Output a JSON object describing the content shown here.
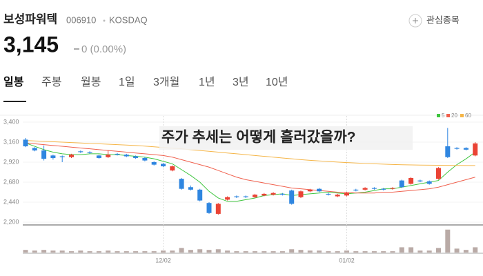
{
  "header": {
    "name": "보성파워텍",
    "code": "006910",
    "market": "KOSDAQ",
    "watch_button": "관심종목",
    "price": "3,145",
    "change": "0 (0.00%)"
  },
  "tabs": [
    "일봉",
    "주봉",
    "월봉",
    "1일",
    "3개월",
    "1년",
    "3년",
    "10년"
  ],
  "overlay": "주가 추세는 어떻게 흘러갔을까?",
  "chart_data": {
    "type": "candlestick",
    "categories": [
      null,
      null,
      null,
      null,
      null,
      null,
      null,
      null,
      null,
      null,
      null,
      null,
      null,
      null,
      null,
      "12/02",
      null,
      null,
      null,
      null,
      null,
      null,
      null,
      null,
      null,
      null,
      null,
      null,
      null,
      null,
      null,
      null,
      null,
      null,
      null,
      "01/02",
      null,
      null,
      null,
      null,
      null,
      null,
      null,
      null,
      null,
      null,
      null,
      null,
      null,
      null
    ],
    "open": [
      3190,
      3090,
      3060,
      3000,
      2990,
      2980,
      3050,
      3040,
      3000,
      2980,
      3020,
      3010,
      2990,
      2970,
      2920,
      2900,
      2820,
      2720,
      2620,
      2590,
      2430,
      2300,
      2470,
      2510,
      2510,
      2500,
      2520,
      2530,
      2540,
      2580,
      2500,
      2570,
      2600,
      2540,
      2510,
      2520,
      2590,
      2590,
      2610,
      2600,
      2600,
      2700,
      2660,
      2700,
      2690,
      2720,
      3110,
      3090,
      3090,
      3000
    ],
    "high": [
      3210,
      3100,
      3120,
      3010,
      3000,
      3020,
      3060,
      3050,
      3010,
      3060,
      3030,
      3020,
      3000,
      2980,
      2930,
      2910,
      2880,
      2730,
      2640,
      2600,
      2440,
      2430,
      2510,
      2520,
      2520,
      2540,
      2550,
      2560,
      2550,
      2590,
      2580,
      2600,
      2610,
      2550,
      2540,
      2560,
      2600,
      2620,
      2620,
      2610,
      2620,
      2710,
      2740,
      2710,
      2700,
      2860,
      3330,
      3100,
      3100,
      3160
    ],
    "low": [
      3100,
      3050,
      2940,
      2950,
      2920,
      2970,
      3030,
      3020,
      2960,
      2970,
      3000,
      2980,
      2960,
      2930,
      2880,
      2860,
      2810,
      2590,
      2580,
      2450,
      2300,
      2290,
      2460,
      2490,
      2490,
      2490,
      2510,
      2520,
      2520,
      2410,
      2490,
      2560,
      2560,
      2520,
      2500,
      2510,
      2570,
      2580,
      2590,
      2580,
      2590,
      2610,
      2650,
      2680,
      2650,
      2710,
      2970,
      3070,
      3060,
      2990
    ],
    "close": [
      3110,
      3060,
      2960,
      2970,
      2980,
      3010,
      3040,
      3030,
      2970,
      3010,
      3010,
      2990,
      2970,
      2940,
      2890,
      2870,
      2870,
      2600,
      2590,
      2460,
      2310,
      2420,
      2500,
      2500,
      2500,
      2530,
      2540,
      2550,
      2530,
      2420,
      2570,
      2590,
      2570,
      2530,
      2530,
      2550,
      2580,
      2610,
      2600,
      2590,
      2610,
      2620,
      2730,
      2690,
      2660,
      2850,
      2980,
      3080,
      3070,
      3145
    ],
    "volume": [
      4,
      3,
      4,
      3,
      3,
      2,
      3,
      2,
      2,
      3,
      2,
      2,
      2,
      2,
      2,
      3,
      3,
      7,
      4,
      5,
      4,
      5,
      3,
      2,
      2,
      2,
      2,
      2,
      2,
      5,
      4,
      3,
      3,
      2,
      2,
      3,
      2,
      2,
      2,
      2,
      2,
      8,
      8,
      3,
      3,
      7,
      35,
      6,
      4,
      8
    ],
    "volume_ylim": [
      0,
      40
    ],
    "up_color": "#ea4335",
    "down_color": "#2f86e0",
    "volume_color": "#b9aaa6",
    "series": [
      {
        "name": "5",
        "color": "#3ec53e",
        "values": [
          3150,
          3110,
          3070,
          3040,
          3020,
          3010,
          3010,
          3020,
          3020,
          3010,
          3010,
          3000,
          2990,
          2980,
          2960,
          2930,
          2900,
          2830,
          2760,
          2680,
          2570,
          2490,
          2450,
          2450,
          2470,
          2490,
          2520,
          2530,
          2540,
          2520,
          2530,
          2540,
          2550,
          2560,
          2550,
          2540,
          2550,
          2560,
          2580,
          2600,
          2600,
          2620,
          2640,
          2660,
          2680,
          2700,
          2800,
          2890,
          2960,
          3040
        ]
      },
      {
        "name": "20",
        "color": "#f0604d",
        "values": [
          3150,
          3140,
          3130,
          3120,
          3110,
          3100,
          3090,
          3080,
          3070,
          3060,
          3050,
          3040,
          3030,
          3020,
          3010,
          3000,
          2980,
          2950,
          2920,
          2890,
          2860,
          2820,
          2780,
          2740,
          2710,
          2690,
          2670,
          2650,
          2630,
          2610,
          2600,
          2590,
          2580,
          2570,
          2560,
          2560,
          2550,
          2550,
          2550,
          2560,
          2560,
          2570,
          2580,
          2590,
          2600,
          2620,
          2650,
          2680,
          2710,
          2740
        ]
      },
      {
        "name": "60",
        "color": "#f5b547",
        "values": [
          3180,
          3175,
          3170,
          3165,
          3160,
          3155,
          3150,
          3145,
          3140,
          3135,
          3130,
          3125,
          3120,
          3112,
          3104,
          3096,
          3088,
          3080,
          3070,
          3060,
          3050,
          3040,
          3030,
          3020,
          3010,
          3000,
          2990,
          2980,
          2970,
          2960,
          2950,
          2942,
          2935,
          2928,
          2921,
          2915,
          2910,
          2905,
          2900,
          2896,
          2892,
          2889,
          2887,
          2885,
          2884,
          2883,
          2882,
          2881,
          2880,
          2880
        ]
      }
    ],
    "ylim": [
      2200,
      3400
    ],
    "yticks": [
      {
        "value": 3400,
        "label": "3,400"
      },
      {
        "value": 3160,
        "label": "3,160"
      },
      {
        "value": 2920,
        "label": "2,920"
      },
      {
        "value": 2680,
        "label": "2,680"
      },
      {
        "value": 2440,
        "label": "2,440"
      },
      {
        "value": 2200,
        "label": "2,200"
      }
    ]
  }
}
